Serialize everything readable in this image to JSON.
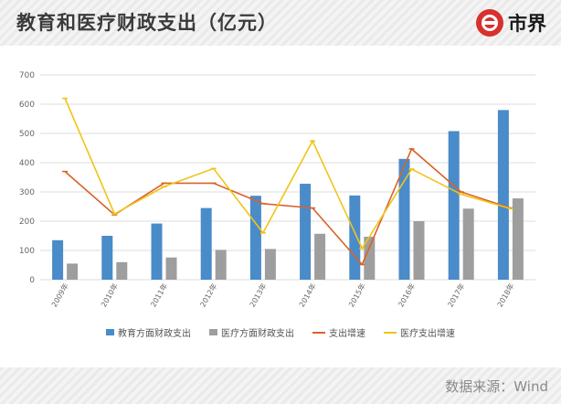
{
  "header": {
    "title": "教育和医疗财政支出（亿元）",
    "brand_name": "市界"
  },
  "footer": {
    "source": "数据来源：Wind"
  },
  "colors": {
    "education_bar": "#4a8bc9",
    "health_bar": "#9e9e9e",
    "spending_growth_line": "#d9632a",
    "health_growth_line": "#f0c419",
    "grid": "#dcdcdc",
    "brand_red": "#d7312e"
  },
  "icons": {
    "brand": "shijie-logo-icon"
  },
  "chart_data": {
    "type": "bar",
    "title": "教育和医疗财政支出（亿元）",
    "categories": [
      "2009年",
      "2010年",
      "2011年",
      "2012年",
      "2013年",
      "2014年",
      "2015年",
      "2016年",
      "2017年",
      "2018年"
    ],
    "ylim": [
      0,
      700
    ],
    "yticks": [
      0,
      100,
      200,
      300,
      400,
      500,
      600,
      700
    ],
    "grid": true,
    "legend_position": "bottom",
    "series": [
      {
        "name": "教育方面财政支出",
        "kind": "bar",
        "values": [
          135,
          150,
          192,
          245,
          287,
          328,
          288,
          413,
          508,
          580
        ]
      },
      {
        "name": "医疗方面财政支出",
        "kind": "bar",
        "values": [
          55,
          60,
          76,
          102,
          105,
          157,
          147,
          200,
          243,
          278
        ]
      },
      {
        "name": "支出增速",
        "kind": "line",
        "values": [
          370,
          222,
          330,
          330,
          260,
          245,
          52,
          447,
          300,
          245
        ]
      },
      {
        "name": "医疗支出增速",
        "kind": "line",
        "values": [
          620,
          225,
          318,
          380,
          160,
          474,
          107,
          378,
          292,
          243
        ]
      }
    ]
  }
}
